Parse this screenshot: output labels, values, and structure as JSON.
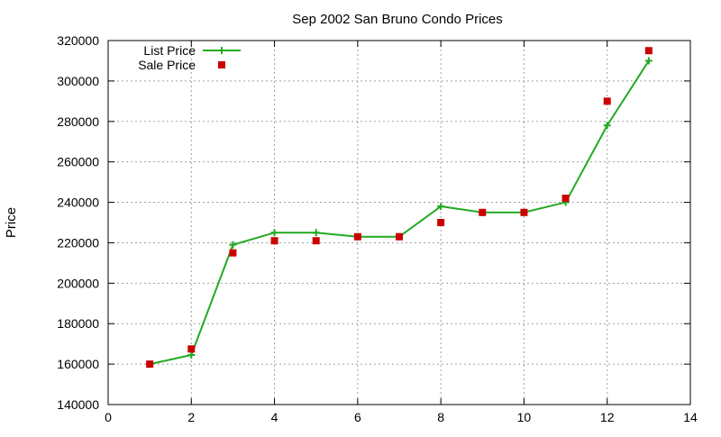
{
  "chart_data": {
    "type": "line",
    "title": "Sep 2002 San Bruno Condo Prices",
    "xlabel": "",
    "ylabel": "Price",
    "xlim": [
      0,
      14
    ],
    "ylim": [
      140000,
      320000
    ],
    "xticks": [
      0,
      2,
      4,
      6,
      8,
      10,
      12,
      14
    ],
    "yticks": [
      140000,
      160000,
      180000,
      200000,
      220000,
      240000,
      260000,
      280000,
      300000,
      320000
    ],
    "grid": true,
    "legend_position": "top-left",
    "series": [
      {
        "name": "List Price",
        "style": "linespoints",
        "marker": "plus",
        "color": "#22aa22",
        "x": [
          1,
          2,
          3,
          4,
          5,
          6,
          7,
          8,
          9,
          10,
          11,
          12,
          13
        ],
        "y": [
          160000,
          164500,
          219000,
          225000,
          225000,
          223000,
          223000,
          238000,
          235000,
          235000,
          240000,
          278000,
          310000
        ]
      },
      {
        "name": "Sale Price",
        "style": "points",
        "marker": "square",
        "color": "#cc0000",
        "x": [
          1,
          2,
          3,
          4,
          5,
          6,
          7,
          8,
          9,
          10,
          11,
          12,
          13
        ],
        "y": [
          160000,
          167500,
          215000,
          221000,
          221000,
          223000,
          223000,
          230000,
          235000,
          235000,
          242000,
          290000,
          315000
        ]
      }
    ]
  }
}
